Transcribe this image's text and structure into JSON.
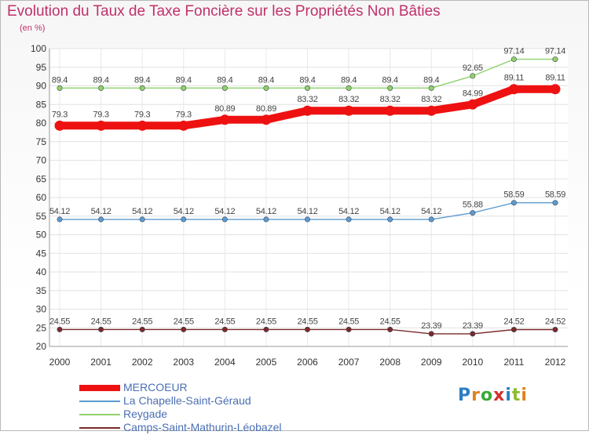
{
  "chart_data": {
    "type": "line",
    "title": "Evolution du Taux de Taxe Foncière sur les Propriétés Non Bâties",
    "ylabel": "(en %)",
    "xlabel": "",
    "ylim": [
      20,
      100
    ],
    "yticks": [
      20,
      25,
      30,
      35,
      40,
      45,
      50,
      55,
      60,
      65,
      70,
      75,
      80,
      85,
      90,
      95,
      100
    ],
    "categories": [
      "2000",
      "2001",
      "2002",
      "2003",
      "2004",
      "2005",
      "2006",
      "2007",
      "2008",
      "2009",
      "2010",
      "2011",
      "2012"
    ],
    "grid": true,
    "legend_position": "bottom-left",
    "series": [
      {
        "name": "MERCOEUR",
        "color": "#ee1111",
        "values": [
          79.3,
          79.3,
          79.3,
          79.3,
          80.89,
          80.89,
          83.32,
          83.32,
          83.32,
          83.32,
          84.99,
          89.11,
          89.11
        ],
        "labels": [
          "79.3",
          "79.3",
          "79.3",
          "79.3",
          "80.89",
          "80.89",
          "83.32",
          "83.32",
          "83.32",
          "83.32",
          "84.99",
          "89.11",
          "89.11"
        ]
      },
      {
        "name": "La Chapelle-Saint-Géraud",
        "color": "#5b9bd1",
        "values": [
          54.12,
          54.12,
          54.12,
          54.12,
          54.12,
          54.12,
          54.12,
          54.12,
          54.12,
          54.12,
          55.88,
          58.59,
          58.59
        ],
        "labels": [
          "54.12",
          "54.12",
          "54.12",
          "54.12",
          "54.12",
          "54.12",
          "54.12",
          "54.12",
          "54.12",
          "54.12",
          "55.88",
          "58.59",
          "58.59"
        ]
      },
      {
        "name": "Reygade",
        "color": "#8fd16a",
        "values": [
          89.4,
          89.4,
          89.4,
          89.4,
          89.4,
          89.4,
          89.4,
          89.4,
          89.4,
          89.4,
          92.65,
          97.14,
          97.14
        ],
        "labels": [
          "89.4",
          "89.4",
          "89.4",
          "89.4",
          "89.4",
          "89.4",
          "89.4",
          "89.4",
          "89.4",
          "89.4",
          "92.65",
          "97.14",
          "97.14"
        ]
      },
      {
        "name": "Camps-Saint-Mathurin-Léobazel",
        "color": "#7a2a2a",
        "values": [
          24.55,
          24.55,
          24.55,
          24.55,
          24.55,
          24.55,
          24.55,
          24.55,
          24.55,
          23.39,
          23.39,
          24.52,
          24.52
        ],
        "labels": [
          "24.55",
          "24.55",
          "24.55",
          "24.55",
          "24.55",
          "24.55",
          "24.55",
          "24.55",
          "24.55",
          "23.39",
          "23.39",
          "24.52",
          "24.52"
        ]
      }
    ]
  },
  "logo": {
    "text": "Proxiti",
    "letters": [
      "P",
      "r",
      "o",
      "x",
      "i",
      "t",
      "i"
    ]
  }
}
